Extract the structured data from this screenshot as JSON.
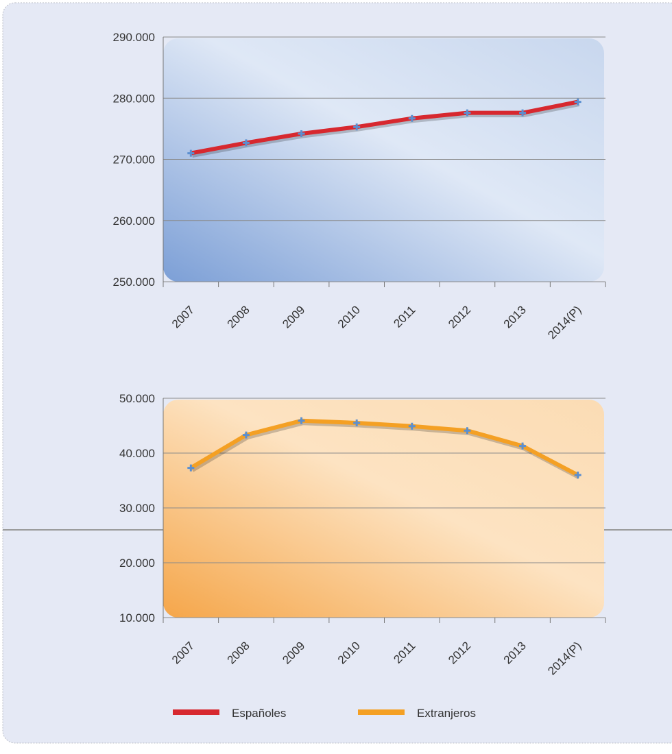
{
  "chart_data": [
    {
      "type": "line",
      "categories": [
        "2007",
        "2008",
        "2009",
        "2010",
        "2011",
        "2012",
        "2013",
        "2014(P)"
      ],
      "series": [
        {
          "name": "Españoles",
          "color": "#d7282f",
          "values": [
            271000,
            272700,
            274200,
            275300,
            276700,
            277600,
            277600,
            279400
          ]
        }
      ],
      "ylim": [
        250000,
        290000
      ],
      "yticks": [
        {
          "value": 250000,
          "label": "250.000"
        },
        {
          "value": 260000,
          "label": "260.000"
        },
        {
          "value": 270000,
          "label": "270.000"
        },
        {
          "value": 280000,
          "label": "280.000"
        },
        {
          "value": 290000,
          "label": "290.000"
        }
      ],
      "grid": true
    },
    {
      "type": "line",
      "categories": [
        "2007",
        "2008",
        "2009",
        "2010",
        "2011",
        "2012",
        "2013",
        "2014(P)"
      ],
      "series": [
        {
          "name": "Extranjeros",
          "color": "#f4a024",
          "values": [
            37300,
            43300,
            45900,
            45500,
            44900,
            44100,
            41300,
            36000
          ]
        }
      ],
      "ylim": [
        10000,
        50000
      ],
      "yticks": [
        {
          "value": 10000,
          "label": "10.000"
        },
        {
          "value": 20000,
          "label": "20.000"
        },
        {
          "value": 30000,
          "label": "30.000"
        },
        {
          "value": 40000,
          "label": "40.000"
        },
        {
          "value": 50000,
          "label": "50.000"
        }
      ],
      "grid": true
    }
  ]
}
